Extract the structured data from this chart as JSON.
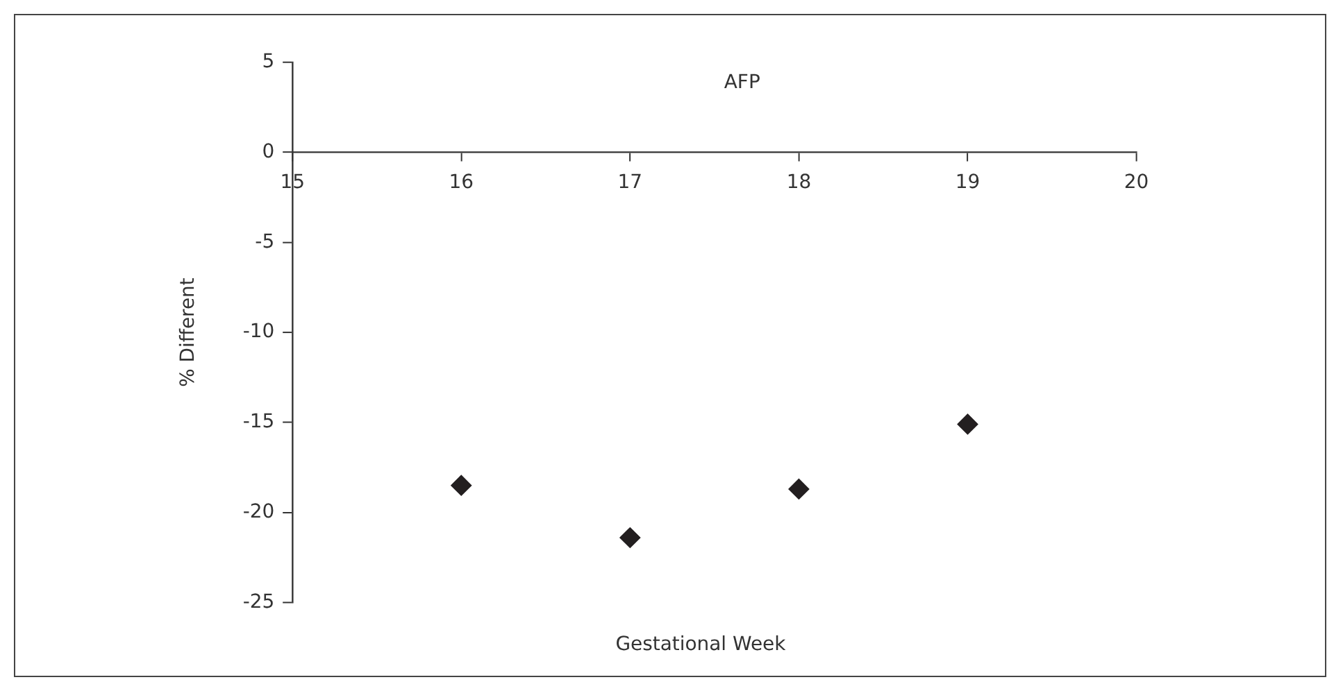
{
  "chart_data": {
    "type": "scatter",
    "title": "AFP",
    "xlabel": "Gestational Week",
    "ylabel": "% Different",
    "x": [
      16,
      17,
      18,
      19
    ],
    "series": [
      {
        "color": "#231f20",
        "values": [
          -18.5,
          -21.4,
          -18.7,
          -15.1
        ]
      }
    ],
    "xlim": [
      15,
      20
    ],
    "xticks": [
      15,
      16,
      17,
      18,
      19,
      20
    ],
    "ylim": [
      -25,
      5
    ],
    "yticks": [
      -25,
      -20,
      -15,
      -10,
      -5,
      0,
      5
    ],
    "grid": false,
    "legend": false,
    "marker": "diamond"
  }
}
